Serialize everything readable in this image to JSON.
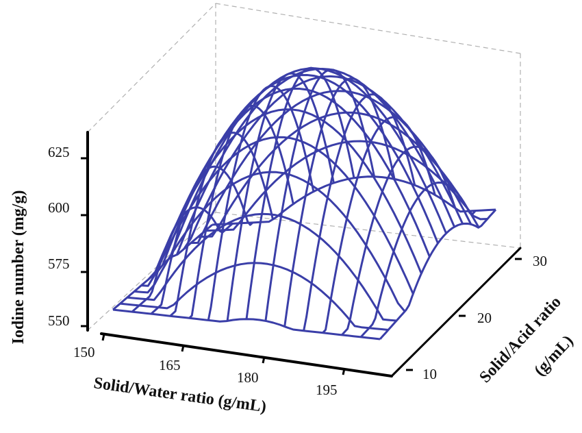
{
  "chart_data": {
    "type": "surface3d",
    "title": "",
    "xlabel": "Solid/Water ratio (g/mL)",
    "ylabel": "Solid/Acid ratio",
    "ylabel_line2": "(g/mL)",
    "zlabel": "Iodine number (mg/g)",
    "x_ticks": [
      "150",
      "165",
      "180",
      "195"
    ],
    "y_ticks": [
      "10",
      "20",
      "30"
    ],
    "z_ticks": [
      "550",
      "575",
      "600",
      "625"
    ],
    "xlim": [
      145,
      205
    ],
    "ylim": [
      5,
      35
    ],
    "zlim": [
      540,
      640
    ],
    "surface_corners": {
      "x": [
        147,
        205
      ],
      "y": [
        5,
        35
      ],
      "z_at_corners": [
        {
          "x": 147,
          "y": 5,
          "z": 553
        },
        {
          "x": 205,
          "y": 5,
          "z": 559
        },
        {
          "x": 147,
          "y": 35,
          "z": 571
        },
        {
          "x": 205,
          "y": 35,
          "z": 582
        }
      ],
      "z_peak": 636
    },
    "wire_color": "#3a3ea8",
    "grid_lines": 14
  }
}
